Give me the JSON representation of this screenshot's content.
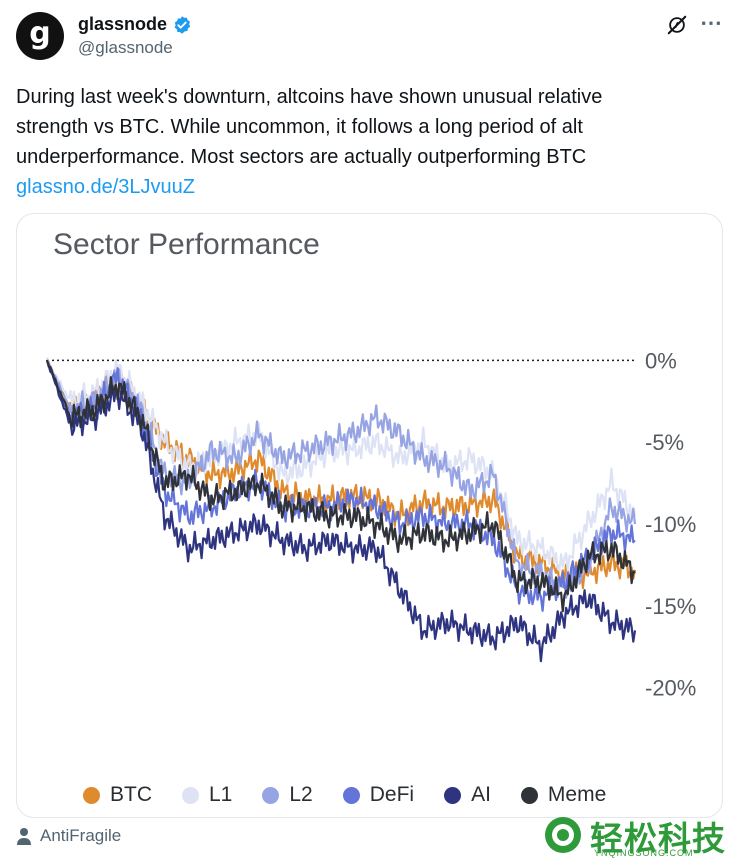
{
  "tweet": {
    "avatar_letter": "g",
    "display_name": "glassnode",
    "handle": "@glassnode",
    "text_lines": [
      "During last week's downturn, altcoins have shown unusual relative",
      "strength vs BTC. While uncommon, it follows a long period of alt",
      "underperformance. Most sectors are actually outperforming BTC"
    ],
    "link": "glassno.de/3LJvuuZ",
    "footer_label": "AntiFragile"
  },
  "icons": {
    "verified": "verified-badge-icon",
    "grok": "grok-icon",
    "more": "more-icon",
    "person": "person-icon"
  },
  "colors": {
    "link": "#1d9bf0",
    "verified": "#1d9bf0",
    "watermark": "#2f9a3a"
  },
  "watermark": {
    "text": "轻松科技",
    "sub": "YNQINGSONG.COM"
  },
  "chart_data": {
    "type": "line",
    "title": "Sector Performance",
    "xlabel": "",
    "ylabel": "",
    "ylim": [
      -21,
      1
    ],
    "y_ticks": [
      {
        "value": 0,
        "label": "0%"
      },
      {
        "value": -5,
        "label": "-5%"
      },
      {
        "value": -10,
        "label": "-10%"
      },
      {
        "value": -15,
        "label": "-15%"
      },
      {
        "value": -20,
        "label": "-20%"
      }
    ],
    "reference_line": 0,
    "x": [
      0,
      4,
      8,
      12,
      16,
      20,
      24,
      28,
      32,
      36,
      40,
      44,
      48,
      52,
      56,
      60,
      64,
      68,
      72,
      76,
      80,
      84,
      88,
      92,
      96,
      100
    ],
    "series": [
      {
        "name": "BTC",
        "color": "#e08a2e",
        "values": [
          0,
          -3,
          -2.5,
          -1,
          -3,
          -5,
          -6,
          -7,
          -6.8,
          -6,
          -8,
          -8.5,
          -8.5,
          -8.3,
          -8.5,
          -9.5,
          -8.7,
          -9,
          -8.8,
          -8.5,
          -12,
          -12.4,
          -13.2,
          -13,
          -12.4,
          -12.8
        ]
      },
      {
        "name": "L1",
        "color": "#dde3f5",
        "values": [
          0,
          -2.5,
          -2,
          -0.5,
          -2.5,
          -5,
          -6.5,
          -6,
          -5,
          -4.5,
          -7,
          -6.5,
          -5.5,
          -5.5,
          -5,
          -6,
          -5,
          -6.5,
          -6,
          -7,
          -11,
          -11.5,
          -12.5,
          -10,
          -7.5,
          -9.5
        ]
      },
      {
        "name": "L2",
        "color": "#97a4e3",
        "values": [
          0,
          -3,
          -2.5,
          -1,
          -3,
          -7,
          -7.5,
          -5.5,
          -6,
          -4.5,
          -6,
          -5.5,
          -5,
          -4.5,
          -3.5,
          -4.5,
          -6,
          -6.5,
          -8,
          -7,
          -12.5,
          -13,
          -14,
          -12.5,
          -9,
          -10
        ]
      },
      {
        "name": "DeFi",
        "color": "#6474d8",
        "values": [
          0,
          -3.5,
          -3,
          -1,
          -3.5,
          -8,
          -9.5,
          -9,
          -8,
          -7.5,
          -9,
          -9,
          -9,
          -8.5,
          -9,
          -10,
          -9.5,
          -10,
          -10,
          -11,
          -14,
          -14.5,
          -13.5,
          -12,
          -10.5,
          -11
        ]
      },
      {
        "name": "AI",
        "color": "#2e3480",
        "values": [
          0,
          -4,
          -3.5,
          -2,
          -4,
          -9.5,
          -11.5,
          -11,
          -10.5,
          -10,
          -11,
          -11.5,
          -11,
          -11.5,
          -11.5,
          -14,
          -16.5,
          -16,
          -16.5,
          -17,
          -16,
          -17.5,
          -15.5,
          -14.5,
          -16,
          -16.5
        ]
      },
      {
        "name": "Meme",
        "color": "#2f3238",
        "values": [
          0,
          -3.5,
          -3,
          -1.5,
          -3.5,
          -7.5,
          -7,
          -8.5,
          -8,
          -7.5,
          -9,
          -9,
          -9.5,
          -9.5,
          -10,
          -11,
          -10.5,
          -11,
          -10.5,
          -10,
          -13.5,
          -13.5,
          -14.5,
          -12,
          -11.5,
          -13
        ]
      }
    ],
    "legend_position": "bottom"
  }
}
